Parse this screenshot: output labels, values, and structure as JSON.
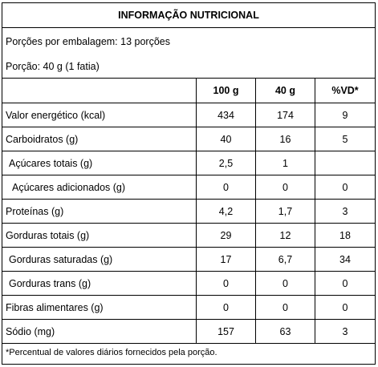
{
  "title": "INFORMAÇÃO NUTRICIONAL",
  "servings_per_package": "Porções por embalagem: 13 porções",
  "serving_size": "Porção: 40 g (1 fatia)",
  "columns": [
    "100 g",
    "40 g",
    "%VD*"
  ],
  "rows": [
    {
      "label": "Valor energético (kcal)",
      "v100": "434",
      "v40": "174",
      "vd": "9"
    },
    {
      "label": "Carboidratos (g)",
      "v100": "40",
      "v40": "16",
      "vd": "5"
    },
    {
      "label": "Açúcares totais (g)",
      "v100": "2,5",
      "v40": "1",
      "vd": ""
    },
    {
      "label": "Açúcares adicionados (g)",
      "v100": "0",
      "v40": "0",
      "vd": "0"
    },
    {
      "label": "Proteínas (g)",
      "v100": "4,2",
      "v40": "1,7",
      "vd": "3"
    },
    {
      "label": "Gorduras totais (g)",
      "v100": "29",
      "v40": "12",
      "vd": "18"
    },
    {
      "label": "Gorduras saturadas (g)",
      "v100": "17",
      "v40": "6,7",
      "vd": "34"
    },
    {
      "label": "Gorduras trans (g)",
      "v100": "0",
      "v40": "0",
      "vd": "0"
    },
    {
      "label": "Fibras alimentares (g)",
      "v100": "0",
      "v40": "0",
      "vd": "0"
    },
    {
      "label": "Sódio (mg)",
      "v100": "157",
      "v40": "63",
      "vd": "3"
    }
  ],
  "footnote": "*Percentual de valores diários fornecidos pela porção."
}
